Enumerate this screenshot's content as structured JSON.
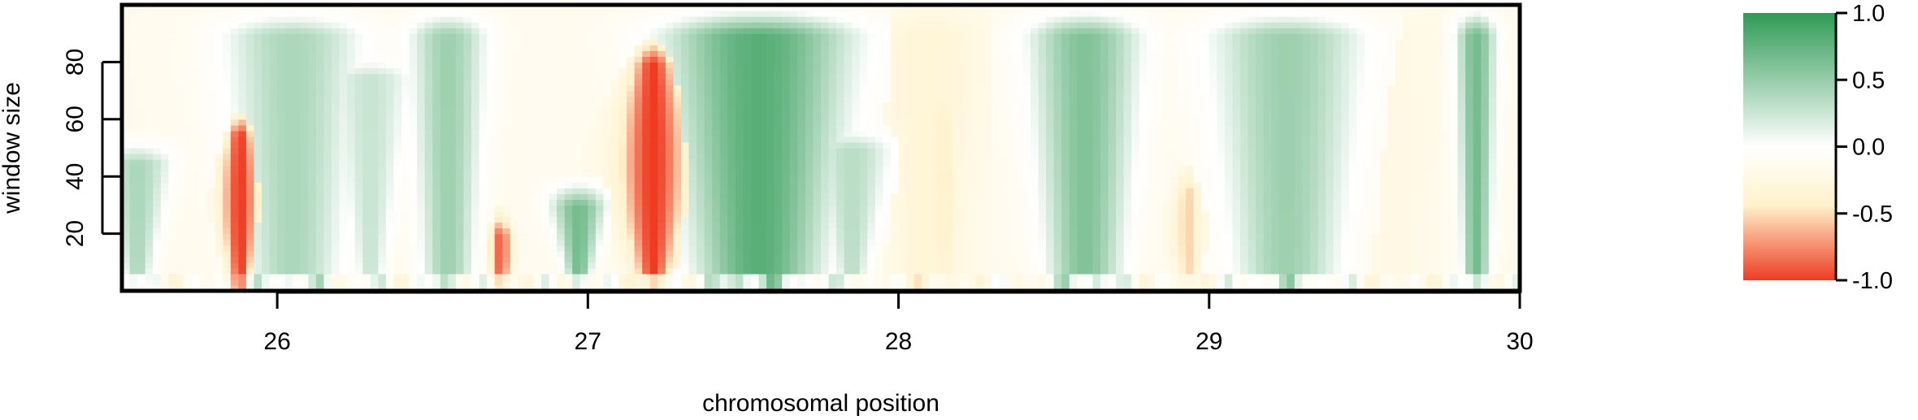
{
  "chart_data": {
    "type": "heatmap",
    "title": "",
    "xlabel": "chromosomal position",
    "ylabel": "window size",
    "xlim": [
      25.5,
      30.0
    ],
    "ylim": [
      0,
      100
    ],
    "xticks": [
      "26",
      "27",
      "28",
      "29",
      "30"
    ],
    "yticks": [
      "20",
      "40",
      "60",
      "80"
    ],
    "grid": false,
    "legend": {
      "placement": "right",
      "type": "colorbar",
      "range": [
        -1.0,
        1.0
      ],
      "ticks": [
        "1.0",
        "0.5",
        "0.0",
        "-0.5",
        "-1.0"
      ]
    },
    "colors": {
      "positive": "#2f9a55",
      "mid_high": "#ffffff",
      "neutral": "#fff2cc",
      "negative": "#ee3b22"
    },
    "features": [
      {
        "x": 25.55,
        "width": 0.1,
        "value": 0.55,
        "top": 55,
        "kind": "cone"
      },
      {
        "x": 25.88,
        "width": 0.05,
        "value": -1.0,
        "top": 65,
        "kind": "spike"
      },
      {
        "x": 26.05,
        "width": 0.22,
        "value": 0.55,
        "top": 100,
        "kind": "column"
      },
      {
        "x": 26.3,
        "width": 0.12,
        "value": 0.45,
        "top": 85,
        "kind": "cone"
      },
      {
        "x": 26.55,
        "width": 0.12,
        "value": 0.6,
        "top": 100,
        "kind": "column"
      },
      {
        "x": 26.72,
        "width": 0.03,
        "value": -0.9,
        "top": 30,
        "kind": "spike"
      },
      {
        "x": 26.85,
        "width": 0.1,
        "value": 0.05,
        "top": 100,
        "kind": "column"
      },
      {
        "x": 26.97,
        "width": 0.08,
        "value": 0.75,
        "top": 40,
        "kind": "cone"
      },
      {
        "x": 27.21,
        "width": 0.09,
        "value": -1.0,
        "top": 90,
        "kind": "spike"
      },
      {
        "x": 27.55,
        "width": 0.28,
        "value": 0.85,
        "top": 100,
        "kind": "column"
      },
      {
        "x": 27.85,
        "width": 0.12,
        "value": 0.5,
        "top": 60,
        "kind": "cone"
      },
      {
        "x": 28.1,
        "width": 0.14,
        "value": -0.3,
        "top": 100,
        "kind": "column"
      },
      {
        "x": 28.15,
        "width": 0.03,
        "value": -0.45,
        "top": 75,
        "kind": "spike"
      },
      {
        "x": 28.6,
        "width": 0.17,
        "value": 0.7,
        "top": 100,
        "kind": "column"
      },
      {
        "x": 28.93,
        "width": 0.04,
        "value": -0.55,
        "top": 45,
        "kind": "spike"
      },
      {
        "x": 29.25,
        "width": 0.24,
        "value": 0.6,
        "top": 100,
        "kind": "column"
      },
      {
        "x": 29.6,
        "width": 0.12,
        "value": -0.12,
        "top": 100,
        "kind": "column"
      },
      {
        "x": 29.86,
        "width": 0.06,
        "value": 0.75,
        "top": 100,
        "kind": "column"
      }
    ]
  }
}
